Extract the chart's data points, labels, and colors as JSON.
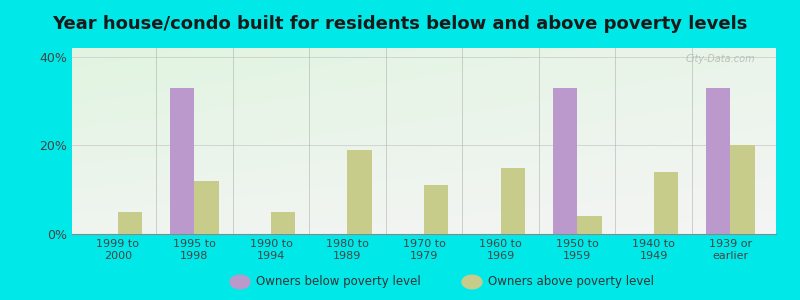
{
  "title": "Year house/condo built for residents below and above poverty levels",
  "categories": [
    "1999 to\n2000",
    "1995 to\n1998",
    "1990 to\n1994",
    "1980 to\n1989",
    "1970 to\n1979",
    "1960 to\n1969",
    "1950 to\n1959",
    "1940 to\n1949",
    "1939 or\nearlier"
  ],
  "below_poverty": [
    0,
    33,
    0,
    0,
    0,
    0,
    33,
    0,
    33
  ],
  "above_poverty": [
    5,
    12,
    5,
    19,
    11,
    15,
    4,
    14,
    20
  ],
  "below_color": "#bb99cc",
  "above_color": "#c8cc8a",
  "ylim": [
    0,
    42
  ],
  "yticks": [
    0,
    20,
    40
  ],
  "ytick_labels": [
    "0%",
    "20%",
    "40%"
  ],
  "outer_bg": "#00e8e8",
  "title_fontsize": 13,
  "legend_below_label": "Owners below poverty level",
  "legend_above_label": "Owners above poverty level",
  "bar_width": 0.32,
  "separator_color": "#aaaaaa",
  "grid_color": "#cccccc",
  "watermark": "City-Data.com"
}
